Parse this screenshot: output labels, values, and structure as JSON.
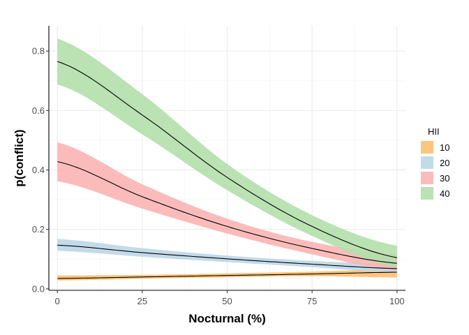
{
  "chart_data": {
    "type": "area",
    "title": "",
    "xlabel": "Nocturnal (%)",
    "ylabel": "p(conflict)",
    "xlim": [
      -2.5,
      102.5
    ],
    "ylim": [
      -0.005,
      0.885
    ],
    "x_ticks": [
      0,
      25,
      50,
      75,
      100
    ],
    "x_tick_labels": [
      "0",
      "25",
      "50",
      "75",
      "100"
    ],
    "y_ticks": [
      0.0,
      0.2,
      0.4,
      0.6,
      0.8
    ],
    "y_tick_labels": [
      "0.0",
      "0.2",
      "0.4",
      "0.6",
      "0.8"
    ],
    "grid": true,
    "legend": {
      "title": "HII",
      "position": "right"
    },
    "x": [
      0,
      25,
      50,
      75,
      100
    ],
    "series": [
      {
        "name": "10",
        "color": "#fdbf6f",
        "fit": [
          0.035,
          0.04,
          0.045,
          0.05,
          0.056
        ],
        "lower": [
          0.028,
          0.034,
          0.039,
          0.043,
          0.038
        ],
        "upper": [
          0.045,
          0.047,
          0.052,
          0.058,
          0.066
        ]
      },
      {
        "name": "20",
        "color": "#bdd7e7",
        "fit": [
          0.147,
          0.122,
          0.101,
          0.083,
          0.068
        ],
        "lower": [
          0.128,
          0.108,
          0.09,
          0.073,
          0.054
        ],
        "upper": [
          0.168,
          0.137,
          0.112,
          0.094,
          0.084
        ]
      },
      {
        "name": "30",
        "color": "#fbb4b4",
        "fit": [
          0.428,
          0.31,
          0.21,
          0.136,
          0.086
        ],
        "lower": [
          0.362,
          0.27,
          0.186,
          0.116,
          0.062
        ],
        "upper": [
          0.493,
          0.352,
          0.236,
          0.158,
          0.116
        ]
      },
      {
        "name": "40",
        "color": "#b2dfab",
        "fit": [
          0.765,
          0.585,
          0.375,
          0.21,
          0.105
        ],
        "lower": [
          0.688,
          0.52,
          0.332,
          0.178,
          0.072
        ],
        "upper": [
          0.842,
          0.655,
          0.42,
          0.248,
          0.145
        ]
      }
    ]
  }
}
